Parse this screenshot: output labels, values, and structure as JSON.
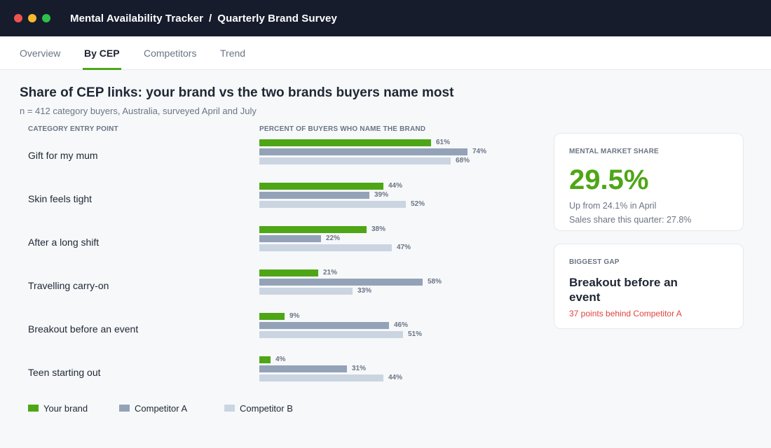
{
  "window": {
    "title_app": "Mental Availability Tracker",
    "title_sep": "/",
    "title_page": "Quarterly Brand Survey"
  },
  "tabs": [
    {
      "label": "Overview",
      "active": false
    },
    {
      "label": "By CEP",
      "active": true
    },
    {
      "label": "Competitors",
      "active": false
    },
    {
      "label": "Trend",
      "active": false
    }
  ],
  "main": {
    "heading": "Share of CEP links: your brand vs the two brands buyers name most",
    "subheading": "n = 412 category buyers, Australia, surveyed April and July",
    "col_cep": "CATEGORY ENTRY POINT",
    "col_percent": "PERCENT OF BUYERS WHO NAME THE BRAND"
  },
  "chart_data": {
    "type": "bar",
    "orientation": "horizontal",
    "unit": "%",
    "categories": [
      "Gift for my mum",
      "Skin feels tight",
      "After a long shift",
      "Travelling carry-on",
      "Breakout before an event",
      "Teen starting out"
    ],
    "series": [
      {
        "name": "Your brand",
        "color": "#4ea616",
        "values": [
          61,
          44,
          38,
          21,
          9,
          4
        ]
      },
      {
        "name": "Competitor A",
        "color": "#94a2b8",
        "values": [
          74,
          39,
          22,
          58,
          46,
          31
        ]
      },
      {
        "name": "Competitor B",
        "color": "#cbd5e1",
        "values": [
          68,
          52,
          47,
          33,
          51,
          44
        ]
      }
    ],
    "xlim": [
      0,
      100
    ],
    "legend": "bottom-left"
  },
  "cards": {
    "mms_label": "MENTAL MARKET SHARE",
    "mms_value": "29.5%",
    "mms_change": "Up from 24.1% in April",
    "mms_sales": "Sales share this quarter: 27.8%",
    "gap_label": "BIGGEST GAP",
    "gap_title": "Breakout before an event",
    "gap_note": "37 points behind Competitor A"
  },
  "colors": {
    "accent": "#4ea616",
    "header_bg": "#161c2c",
    "alert": "#e0433e"
  }
}
